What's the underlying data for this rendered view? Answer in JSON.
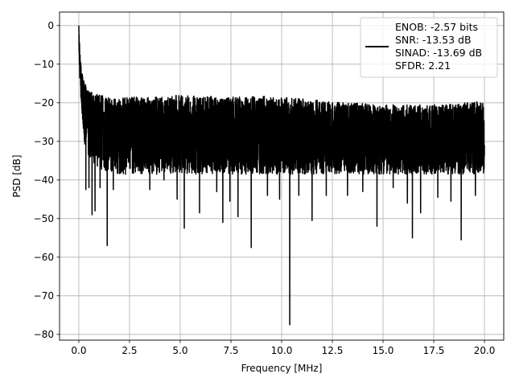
{
  "chart_data": {
    "type": "line",
    "title": "",
    "xlabel": "Frequency [MHz]",
    "ylabel": "PSD [dB]",
    "xlim": [
      -0.95,
      20.95
    ],
    "ylim": [
      -81.5,
      3.5
    ],
    "xticks": [
      0.0,
      2.5,
      5.0,
      7.5,
      10.0,
      12.5,
      15.0,
      17.5,
      20.0
    ],
    "xtick_labels": [
      "0.0",
      "2.5",
      "5.0",
      "7.5",
      "10.0",
      "12.5",
      "15.0",
      "17.5",
      "20.0"
    ],
    "yticks": [
      0,
      -10,
      -20,
      -30,
      -40,
      -50,
      -60,
      -70,
      -80
    ],
    "ytick_labels": [
      "0",
      "−10",
      "−20",
      "−30",
      "−40",
      "−50",
      "−60",
      "−70",
      "−80"
    ],
    "grid": true,
    "legend_position": "top-right",
    "series": [
      {
        "color": "#000000",
        "envelope_x": [
          0.0,
          0.05,
          0.1,
          0.2,
          0.3,
          0.5,
          0.75,
          1.0,
          1.5,
          2.0,
          3.0,
          4.0,
          5.0,
          6.0,
          7.0,
          8.0,
          9.0,
          10.0,
          11.0,
          12.0,
          13.0,
          14.0,
          15.0,
          16.0,
          17.0,
          18.0,
          19.0,
          20.0
        ],
        "envelope_upper": [
          0,
          -6,
          -10,
          -13,
          -15,
          -16.5,
          -17.5,
          -18,
          -18.5,
          -18.5,
          -18.5,
          -18.5,
          -18,
          -18,
          -18.5,
          -18.5,
          -18,
          -18.5,
          -19,
          -19.5,
          -20,
          -20,
          -20.5,
          -20.5,
          -20.5,
          -20.5,
          -20,
          -19.5
        ],
        "envelope_mean": [
          -2,
          -9,
          -14,
          -19,
          -22,
          -24,
          -25,
          -26,
          -27,
          -27.5,
          -28,
          -28,
          -28,
          -28,
          -28,
          -28,
          -28,
          -28.5,
          -29,
          -29,
          -29,
          -29.5,
          -29.5,
          -29.5,
          -29.5,
          -29.5,
          -29.5,
          -29
        ],
        "envelope_lower": [
          -5,
          -14,
          -20,
          -26,
          -31,
          -34,
          -36,
          -37,
          -38,
          -38.5,
          -38.5,
          -38.5,
          -38.5,
          -38.5,
          -38.5,
          -38.5,
          -38.5,
          -38.5,
          -38.5,
          -38.5,
          -38.5,
          -38.5,
          -38.5,
          -38.5,
          -38.5,
          -38.5,
          -38.5,
          -38.5
        ],
        "dips": [
          [
            0.35,
            -42.5
          ],
          [
            0.5,
            -42
          ],
          [
            0.65,
            -49
          ],
          [
            0.8,
            -48
          ],
          [
            1.05,
            -42
          ],
          [
            1.4,
            -57
          ],
          [
            1.7,
            -42.5
          ],
          [
            2.3,
            -38.5
          ],
          [
            3.5,
            -42.5
          ],
          [
            4.2,
            -40
          ],
          [
            4.85,
            -45
          ],
          [
            5.2,
            -52.5
          ],
          [
            5.95,
            -48.5
          ],
          [
            6.8,
            -43
          ],
          [
            7.1,
            -51
          ],
          [
            7.45,
            -45.5
          ],
          [
            7.85,
            -49.5
          ],
          [
            8.5,
            -57.5
          ],
          [
            9.3,
            -44
          ],
          [
            9.9,
            -45
          ],
          [
            10.4,
            -77.5
          ],
          [
            10.85,
            -44
          ],
          [
            11.5,
            -50.5
          ],
          [
            12.2,
            -44
          ],
          [
            13.25,
            -44
          ],
          [
            14.0,
            -43
          ],
          [
            14.7,
            -52
          ],
          [
            15.5,
            -42
          ],
          [
            16.2,
            -46
          ],
          [
            16.45,
            -55
          ],
          [
            16.85,
            -48.5
          ],
          [
            17.7,
            -44.5
          ],
          [
            18.35,
            -45.5
          ],
          [
            18.85,
            -55.5
          ],
          [
            19.55,
            -44
          ]
        ]
      }
    ],
    "legend": {
      "entries": [
        "ENOB: -2.57 bits",
        "SNR: -13.53 dB",
        "SINAD: -13.69 dB",
        "SFDR: 2.21"
      ]
    }
  }
}
